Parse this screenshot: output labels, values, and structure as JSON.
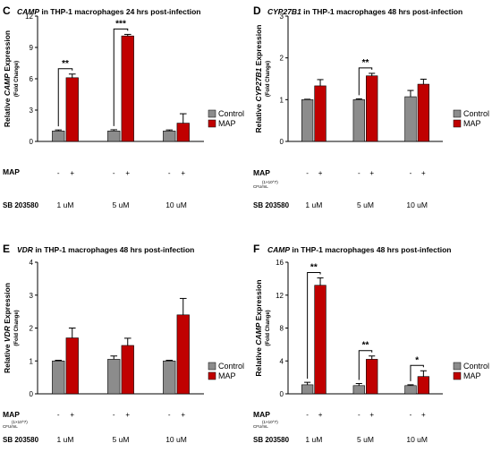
{
  "panels": [
    {
      "letter": "C",
      "title_gene": "CAMP",
      "title_rest": " in THP-1 macrophages 24 hrs post-infection",
      "ylabel_pre": "Relative ",
      "ylabel_gene": "CAMP",
      "ylabel_post": " Expression",
      "ylabel_sub": "(Fold Change)",
      "map_label": "MAP",
      "map_sub": "",
      "sb_label": "SB 203580",
      "minus": "-",
      "plus": "+",
      "groups": [
        "1 uM",
        "5 uM",
        "10 uM"
      ],
      "legend": [
        {
          "label": "Control",
          "color": "#8c8c8c"
        },
        {
          "label": "MAP",
          "color": "#c00000"
        }
      ],
      "significance": [
        {
          "group": 0,
          "label": "**"
        },
        {
          "group": 1,
          "label": "***"
        }
      ]
    },
    {
      "letter": "D",
      "title_gene": "CYP27B1",
      "title_rest": " in THP-1 macrophages 48 hrs post-infection",
      "ylabel_pre": "Relative ",
      "ylabel_gene": "CYP27B1",
      "ylabel_post": " Expression",
      "ylabel_sub": "(Fold Change)",
      "map_label": "MAP",
      "map_sub": "(1×10^7) CFU/mL",
      "sb_label": "SB 203580",
      "minus": "-",
      "plus": "+",
      "groups": [
        "1 uM",
        "5 uM",
        "10 uM"
      ],
      "legend": [
        {
          "label": "Control",
          "color": "#8c8c8c"
        },
        {
          "label": "MAP",
          "color": "#c00000"
        }
      ],
      "significance": [
        {
          "group": 1,
          "label": "**"
        }
      ]
    },
    {
      "letter": "E",
      "title_gene": "VDR",
      "title_rest": " in THP-1 macrophages 48 hrs post-infection",
      "ylabel_pre": "Relative ",
      "ylabel_gene": "VDR",
      "ylabel_post": " Expression",
      "ylabel_sub": "(Fold Change)",
      "map_label": "MAP",
      "map_sub": "(1×10^7) CFU/mL",
      "sb_label": "SB 203580",
      "minus": "-",
      "plus": "+",
      "groups": [
        "1 uM",
        "5 uM",
        "10 uM"
      ],
      "legend": [
        {
          "label": "Control",
          "color": "#8c8c8c"
        },
        {
          "label": "MAP",
          "color": "#c00000"
        }
      ],
      "significance": []
    },
    {
      "letter": "F",
      "title_gene": "CAMP",
      "title_rest": " in THP-1 macrophages 48 hrs post-infection",
      "ylabel_pre": "Relative ",
      "ylabel_gene": "CAMP",
      "ylabel_post": " Expression",
      "ylabel_sub": "(Fold Change)",
      "map_label": "MAP",
      "map_sub": "(1×10^7) CFU/mL",
      "sb_label": "SB 203580",
      "minus": "-",
      "plus": "+",
      "groups": [
        "1 uM",
        "5 uM",
        "10 uM"
      ],
      "legend": [
        {
          "label": "Control",
          "color": "#8c8c8c"
        },
        {
          "label": "MAP",
          "color": "#c00000"
        }
      ],
      "significance": [
        {
          "group": 0,
          "label": "**"
        },
        {
          "group": 1,
          "label": "**"
        },
        {
          "group": 2,
          "label": "*"
        }
      ]
    }
  ],
  "chart_data": [
    {
      "type": "bar",
      "categories": [
        "1 uM",
        "5 uM",
        "10 uM"
      ],
      "ylim": [
        0,
        12
      ],
      "yticks": [
        0,
        3,
        6,
        9,
        12
      ],
      "series": [
        {
          "name": "Control",
          "values": [
            1.0,
            1.0,
            1.0
          ],
          "errors": [
            0.1,
            0.12,
            0.1
          ]
        },
        {
          "name": "MAP",
          "values": [
            6.1,
            10.1,
            1.75
          ],
          "errors": [
            0.35,
            0.15,
            0.9
          ]
        }
      ]
    },
    {
      "type": "bar",
      "categories": [
        "1 uM",
        "5 uM",
        "10 uM"
      ],
      "ylim": [
        0,
        3
      ],
      "yticks": [
        0,
        1,
        2,
        3
      ],
      "series": [
        {
          "name": "Control",
          "values": [
            1.0,
            1.0,
            1.07
          ],
          "errors": [
            0.01,
            0.02,
            0.15
          ]
        },
        {
          "name": "MAP",
          "values": [
            1.33,
            1.57,
            1.37
          ],
          "errors": [
            0.15,
            0.06,
            0.12
          ]
        }
      ]
    },
    {
      "type": "bar",
      "categories": [
        "1 uM",
        "5 uM",
        "10 uM"
      ],
      "ylim": [
        0,
        4
      ],
      "yticks": [
        0,
        1,
        2,
        3,
        4
      ],
      "series": [
        {
          "name": "Control",
          "values": [
            1.0,
            1.05,
            1.0
          ],
          "errors": [
            0.02,
            0.1,
            0.02
          ]
        },
        {
          "name": "MAP",
          "values": [
            1.7,
            1.47,
            2.4
          ],
          "errors": [
            0.3,
            0.22,
            0.5
          ]
        }
      ]
    },
    {
      "type": "bar",
      "categories": [
        "1 uM",
        "5 uM",
        "10 uM"
      ],
      "ylim": [
        0,
        16
      ],
      "yticks": [
        0,
        4,
        8,
        12,
        16
      ],
      "series": [
        {
          "name": "Control",
          "values": [
            1.1,
            1.0,
            1.0
          ],
          "errors": [
            0.3,
            0.25,
            0.1
          ]
        },
        {
          "name": "MAP",
          "values": [
            13.2,
            4.2,
            2.1
          ],
          "errors": [
            0.9,
            0.4,
            0.7
          ]
        }
      ]
    }
  ]
}
